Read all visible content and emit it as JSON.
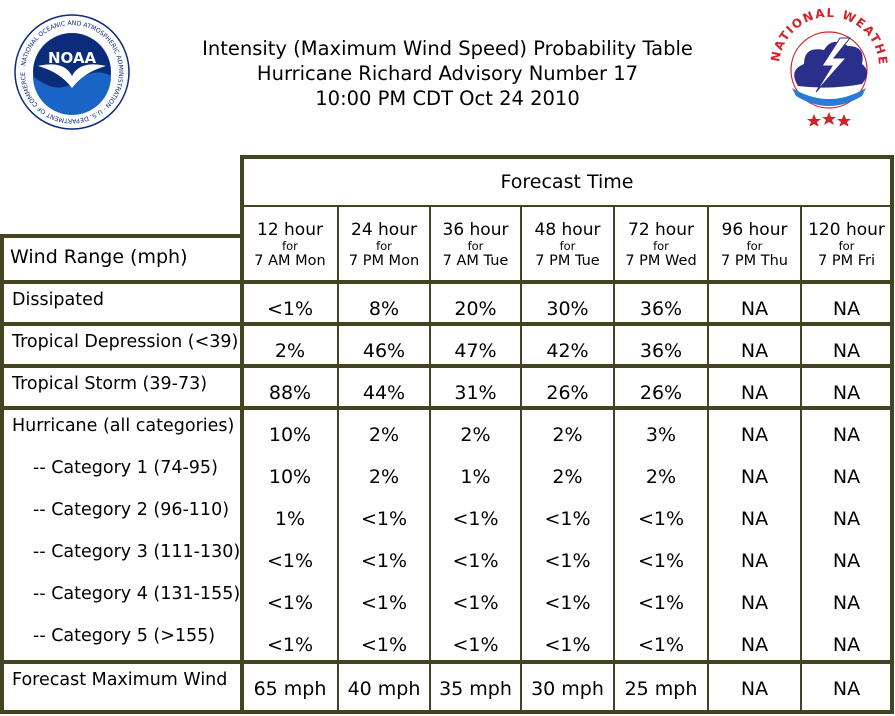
{
  "header": {
    "title_line1": "Intensity (Maximum Wind Speed) Probability Table",
    "title_line2": "Hurricane Richard Advisory Number 17",
    "title_line3": "10:00 PM CDT Oct 24 2010"
  },
  "logos": {
    "noaa": {
      "icon": "noaa-seal-icon",
      "center_text": "NOAA",
      "ring_text": "NATIONAL OCEANIC AND ATMOSPHERIC ADMINISTRATION · U.S. DEPARTMENT OF COMMERCE",
      "colors": {
        "navy": "#0b2c7a",
        "sky": "#1a64c8",
        "white": "#ffffff"
      }
    },
    "nws": {
      "icon": "nws-seal-icon",
      "ring_text": "NATIONAL WEATHER SERVICE",
      "colors": {
        "red": "#d2232a",
        "cloud": "#2a2f8c",
        "lightning": "#ffffff"
      }
    }
  },
  "table": {
    "forecast_time_label": "Forecast Time",
    "row_header_label": "Wind Range (mph)",
    "for_label": "for",
    "columns": [
      {
        "hour": "12 hour",
        "time": "7 AM Mon"
      },
      {
        "hour": "24 hour",
        "time": "7 PM Mon"
      },
      {
        "hour": "36 hour",
        "time": "7 AM Tue"
      },
      {
        "hour": "48 hour",
        "time": "7 PM Tue"
      },
      {
        "hour": "72 hour",
        "time": "7 PM Wed"
      },
      {
        "hour": "96 hour",
        "time": "7 PM Thu"
      },
      {
        "hour": "120 hour",
        "time": "7 PM Fri"
      }
    ],
    "rows": [
      {
        "label": "Dissipated",
        "values": [
          "<1%",
          "8%",
          "20%",
          "30%",
          "36%",
          "NA",
          "NA"
        ]
      },
      {
        "label": "Tropical Depression (<39)",
        "values": [
          "2%",
          "46%",
          "47%",
          "42%",
          "36%",
          "NA",
          "NA"
        ]
      },
      {
        "label": "Tropical Storm (39-73)",
        "values": [
          "88%",
          "44%",
          "31%",
          "26%",
          "26%",
          "NA",
          "NA"
        ]
      },
      {
        "label": "Hurricane (all categories)",
        "values": [
          "10%",
          "2%",
          "2%",
          "2%",
          "3%",
          "NA",
          "NA"
        ]
      },
      {
        "label": "-- Category 1 (74-95)",
        "values": [
          "10%",
          "2%",
          "1%",
          "2%",
          "2%",
          "NA",
          "NA"
        ]
      },
      {
        "label": "-- Category 2 (96-110)",
        "values": [
          "1%",
          "<1%",
          "<1%",
          "<1%",
          "<1%",
          "NA",
          "NA"
        ]
      },
      {
        "label": "-- Category 3 (111-130)",
        "values": [
          "<1%",
          "<1%",
          "<1%",
          "<1%",
          "<1%",
          "NA",
          "NA"
        ]
      },
      {
        "label": "-- Category 4 (131-155)",
        "values": [
          "<1%",
          "<1%",
          "<1%",
          "<1%",
          "<1%",
          "NA",
          "NA"
        ]
      },
      {
        "label": "-- Category 5 (>155)",
        "values": [
          "<1%",
          "<1%",
          "<1%",
          "<1%",
          "<1%",
          "NA",
          "NA"
        ]
      },
      {
        "label": "Forecast Maximum Wind",
        "values": [
          "65 mph",
          "40 mph",
          "35 mph",
          "30 mph",
          "25 mph",
          "NA",
          "NA"
        ]
      }
    ]
  },
  "style": {
    "border_color": "#444422",
    "background": "#ffffff",
    "text": "#000000"
  }
}
